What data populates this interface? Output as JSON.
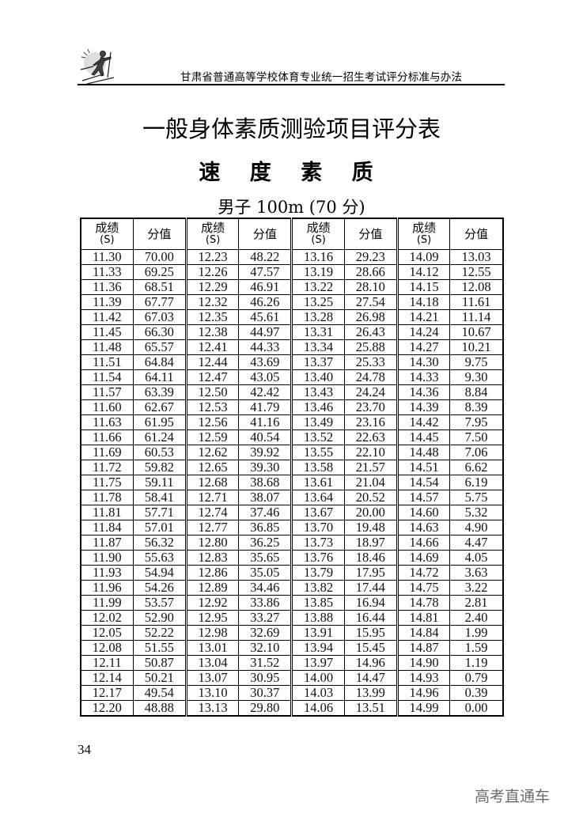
{
  "header": {
    "running_title": "甘肃省普通高等学校体育专业统一招生考试评分标准与办法",
    "logo_icon": "skier-logo-icon"
  },
  "title": "一般身体素质测验项目评分表",
  "subtitle": "速 度 素 质",
  "table": {
    "caption": "男子 100m (70 分)",
    "headers": [
      {
        "label": "成绩",
        "unit": "(S)"
      },
      {
        "label": "分值"
      },
      {
        "label": "成绩",
        "unit": "(S)"
      },
      {
        "label": "分值"
      },
      {
        "label": "成绩",
        "unit": "(S)"
      },
      {
        "label": "分值"
      },
      {
        "label": "成绩",
        "unit": "(S)"
      },
      {
        "label": "分值"
      }
    ],
    "rows": [
      [
        "11.30",
        "70.00",
        "12.23",
        "48.22",
        "13.16",
        "29.23",
        "14.09",
        "13.03"
      ],
      [
        "11.33",
        "69.25",
        "12.26",
        "47.57",
        "13.19",
        "28.66",
        "14.12",
        "12.55"
      ],
      [
        "11.36",
        "68.51",
        "12.29",
        "46.91",
        "13.22",
        "28.10",
        "14.15",
        "12.08"
      ],
      [
        "11.39",
        "67.77",
        "12.32",
        "46.26",
        "13.25",
        "27.54",
        "14.18",
        "11.61"
      ],
      [
        "11.42",
        "67.03",
        "12.35",
        "45.61",
        "13.28",
        "26.98",
        "14.21",
        "11.14"
      ],
      [
        "11.45",
        "66.30",
        "12.38",
        "44.97",
        "13.31",
        "26.43",
        "14.24",
        "10.67"
      ],
      [
        "11.48",
        "65.57",
        "12.41",
        "44.33",
        "13.34",
        "25.88",
        "14.27",
        "10.21"
      ],
      [
        "11.51",
        "64.84",
        "12.44",
        "43.69",
        "13.37",
        "25.33",
        "14.30",
        "9.75"
      ],
      [
        "11.54",
        "64.11",
        "12.47",
        "43.05",
        "13.40",
        "24.78",
        "14.33",
        "9.30"
      ],
      [
        "11.57",
        "63.39",
        "12.50",
        "42.42",
        "13.43",
        "24.24",
        "14.36",
        "8.84"
      ],
      [
        "11.60",
        "62.67",
        "12.53",
        "41.79",
        "13.46",
        "23.70",
        "14.39",
        "8.39"
      ],
      [
        "11.63",
        "61.95",
        "12.56",
        "41.16",
        "13.49",
        "23.16",
        "14.42",
        "7.95"
      ],
      [
        "11.66",
        "61.24",
        "12.59",
        "40.54",
        "13.52",
        "22.63",
        "14.45",
        "7.50"
      ],
      [
        "11.69",
        "60.53",
        "12.62",
        "39.92",
        "13.55",
        "22.10",
        "14.48",
        "7.06"
      ],
      [
        "11.72",
        "59.82",
        "12.65",
        "39.30",
        "13.58",
        "21.57",
        "14.51",
        "6.62"
      ],
      [
        "11.75",
        "59.11",
        "12.68",
        "38.68",
        "13.61",
        "21.04",
        "14.54",
        "6.19"
      ],
      [
        "11.78",
        "58.41",
        "12.71",
        "38.07",
        "13.64",
        "20.52",
        "14.57",
        "5.75"
      ],
      [
        "11.81",
        "57.71",
        "12.74",
        "37.46",
        "13.67",
        "20.00",
        "14.60",
        "5.32"
      ],
      [
        "11.84",
        "57.01",
        "12.77",
        "36.85",
        "13.70",
        "19.48",
        "14.63",
        "4.90"
      ],
      [
        "11.87",
        "56.32",
        "12.80",
        "36.25",
        "13.73",
        "18.97",
        "14.66",
        "4.47"
      ],
      [
        "11.90",
        "55.63",
        "12.83",
        "35.65",
        "13.76",
        "18.46",
        "14.69",
        "4.05"
      ],
      [
        "11.93",
        "54.94",
        "12.86",
        "35.05",
        "13.79",
        "17.95",
        "14.72",
        "3.63"
      ],
      [
        "11.96",
        "54.26",
        "12.89",
        "34.46",
        "13.82",
        "17.44",
        "14.75",
        "3.22"
      ],
      [
        "11.99",
        "53.57",
        "12.92",
        "33.86",
        "13.85",
        "16.94",
        "14.78",
        "2.81"
      ],
      [
        "12.02",
        "52.90",
        "12.95",
        "33.27",
        "13.88",
        "16.44",
        "14.81",
        "2.40"
      ],
      [
        "12.05",
        "52.22",
        "12.98",
        "32.69",
        "13.91",
        "15.95",
        "14.84",
        "1.99"
      ],
      [
        "12.08",
        "51.55",
        "13.01",
        "32.10",
        "13.94",
        "15.45",
        "14.87",
        "1.59"
      ],
      [
        "12.11",
        "50.87",
        "13.04",
        "31.52",
        "13.97",
        "14.96",
        "14.90",
        "1.19"
      ],
      [
        "12.14",
        "50.21",
        "13.07",
        "30.95",
        "14.00",
        "14.47",
        "14.93",
        "0.79"
      ],
      [
        "12.17",
        "49.54",
        "13.10",
        "30.37",
        "14.03",
        "13.99",
        "14.96",
        "0.39"
      ],
      [
        "12.20",
        "48.88",
        "13.13",
        "29.80",
        "14.06",
        "13.51",
        "14.99",
        "0.00"
      ]
    ]
  },
  "footer": {
    "page_number": "34",
    "watermark": "高考直通车"
  }
}
